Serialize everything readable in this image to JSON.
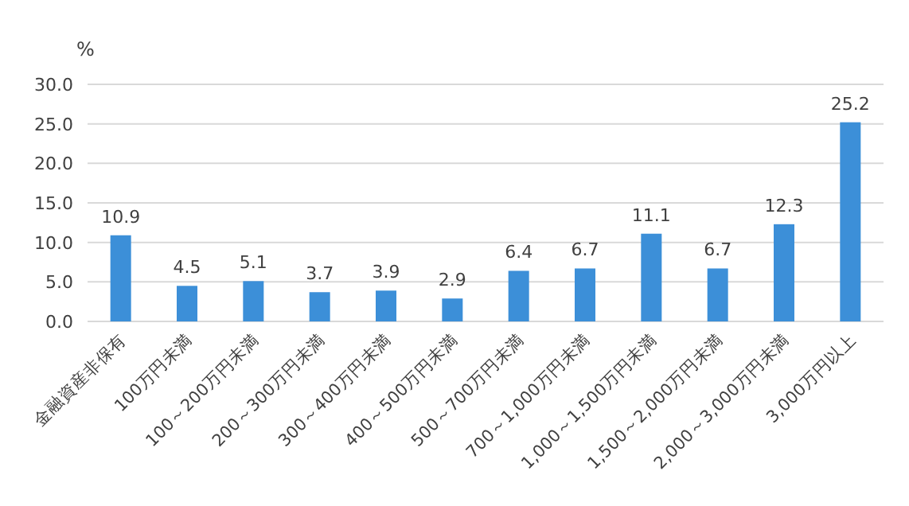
{
  "chart_data": {
    "type": "bar",
    "ylabel": "%",
    "categories": [
      "金融資産非保有",
      "100万円未満",
      "100～200万円未満",
      "200～300万円未満",
      "300～400万円未満",
      "400～500万円未満",
      "500～700万円未満",
      "700～1,000万円未満",
      "1,000～1,500万円未満",
      "1,500～2,000万円未満",
      "2,000～3,000万円未満",
      "3,000万円以上"
    ],
    "values": [
      10.9,
      4.5,
      5.1,
      3.7,
      3.9,
      2.9,
      6.4,
      6.7,
      11.1,
      6.7,
      12.3,
      25.2
    ],
    "color": "#3c8fd8",
    "ylim": [
      0,
      30
    ],
    "yticks": [
      {
        "value": 0,
        "label": "0.0"
      },
      {
        "value": 5,
        "label": "5.0"
      },
      {
        "value": 10,
        "label": "10.0"
      },
      {
        "value": 15,
        "label": "15.0"
      },
      {
        "value": 20,
        "label": "20.0"
      },
      {
        "value": 25,
        "label": "25.0"
      },
      {
        "value": 30,
        "label": "30.0"
      }
    ],
    "grid": "y",
    "data_labels": true
  }
}
